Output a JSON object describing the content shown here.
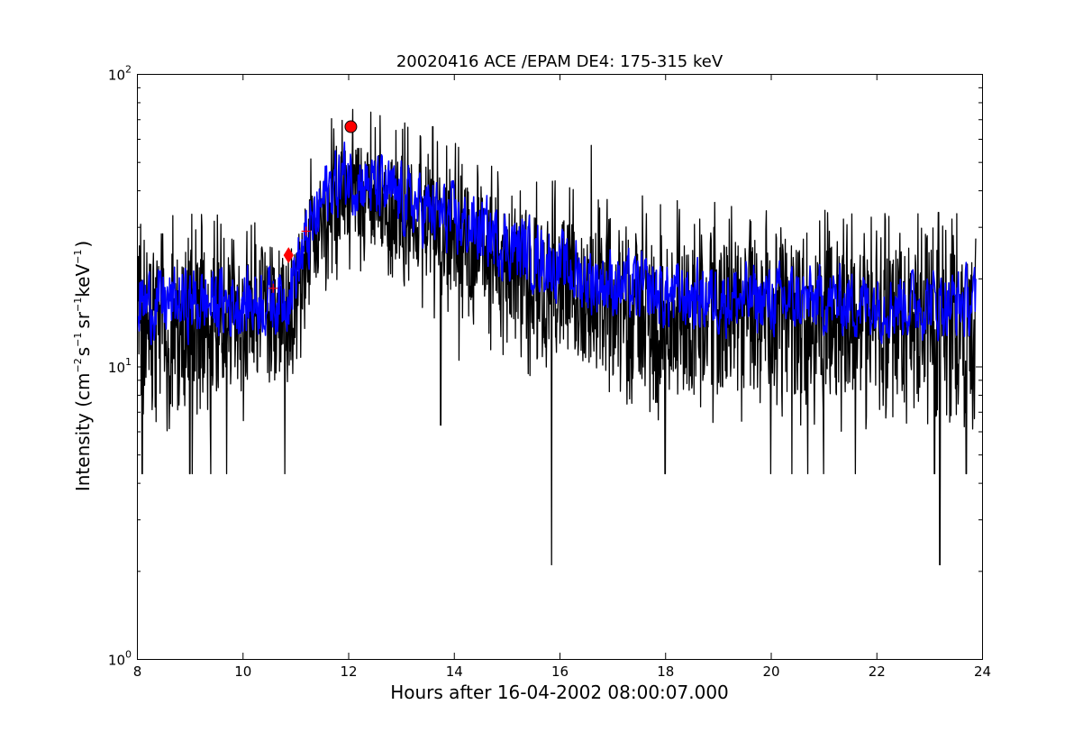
{
  "chart_data": {
    "type": "line",
    "title": "20020416 ACE /EPAM DE4: 175-315 keV",
    "xlabel": "Hours after 16-04-2002 08:00:07.000",
    "ylabel": {
      "prefix": "Intensity (cm",
      "exp1": "−2",
      "s": "s",
      "exp2": "−1",
      "sr": "sr",
      "exp3": "−1",
      "kev": "keV",
      "exp4": "−1",
      "suffix": ")"
    },
    "xlim": [
      8,
      24
    ],
    "ylim": [
      1,
      100
    ],
    "yscale": "log",
    "grid": false,
    "x_ticks": [
      8,
      10,
      12,
      14,
      16,
      18,
      20,
      22,
      24
    ],
    "y_ticks": [
      {
        "value": 1,
        "base": "10",
        "exp": "0"
      },
      {
        "value": 10,
        "base": "10",
        "exp": "1"
      },
      {
        "value": 100,
        "base": "10",
        "exp": "2"
      }
    ],
    "series": [
      {
        "color": "#000000",
        "style": "raw intensity, noisy",
        "x_start": 8.02,
        "x_end": 23.88,
        "envelope": [
          {
            "x": 8.0,
            "low": 8,
            "high": 25
          },
          {
            "x": 9.0,
            "low": 8,
            "high": 25
          },
          {
            "x": 10.0,
            "low": 8,
            "high": 25
          },
          {
            "x": 10.8,
            "low": 9,
            "high": 26
          },
          {
            "x": 11.2,
            "low": 15,
            "high": 35
          },
          {
            "x": 11.6,
            "low": 25,
            "high": 52
          },
          {
            "x": 12.0,
            "low": 28,
            "high": 58
          },
          {
            "x": 12.6,
            "low": 25,
            "high": 55
          },
          {
            "x": 13.5,
            "low": 20,
            "high": 48
          },
          {
            "x": 14.5,
            "low": 16,
            "high": 40
          },
          {
            "x": 15.5,
            "low": 12,
            "high": 34
          },
          {
            "x": 16.5,
            "low": 10,
            "high": 30
          },
          {
            "x": 18.0,
            "low": 8,
            "high": 28
          },
          {
            "x": 20.0,
            "low": 8,
            "high": 26
          },
          {
            "x": 22.0,
            "low": 8,
            "high": 25
          },
          {
            "x": 24.0,
            "low": 8,
            "high": 25
          }
        ],
        "spikes": [
          {
            "x": 8.1,
            "y": 4.3
          },
          {
            "x": 9.0,
            "y": 4.3
          },
          {
            "x": 9.05,
            "y": 4.3
          },
          {
            "x": 9.4,
            "y": 4.3
          },
          {
            "x": 9.7,
            "y": 4.3
          },
          {
            "x": 10.8,
            "y": 4.3
          },
          {
            "x": 12.6,
            "y": 72
          },
          {
            "x": 13.6,
            "y": 66
          },
          {
            "x": 13.75,
            "y": 6.3
          },
          {
            "x": 14.1,
            "y": 10.5
          },
          {
            "x": 15.85,
            "y": 2.1
          },
          {
            "x": 16.6,
            "y": 57
          },
          {
            "x": 18.0,
            "y": 4.3
          },
          {
            "x": 20.0,
            "y": 4.3
          },
          {
            "x": 20.4,
            "y": 4.3
          },
          {
            "x": 20.7,
            "y": 4.3
          },
          {
            "x": 21.0,
            "y": 4.3
          },
          {
            "x": 21.6,
            "y": 4.3
          },
          {
            "x": 23.1,
            "y": 4.3
          },
          {
            "x": 23.2,
            "y": 2.1
          },
          {
            "x": 23.7,
            "y": 4.3
          }
        ]
      },
      {
        "color": "#0000ff",
        "style": "smoothed intensity",
        "x_start": 8.02,
        "x_end": 23.88,
        "profile": [
          {
            "x": 8.0,
            "y": 16.5
          },
          {
            "x": 9.0,
            "y": 16.5
          },
          {
            "x": 10.0,
            "y": 16.5
          },
          {
            "x": 10.8,
            "y": 17.0
          },
          {
            "x": 11.2,
            "y": 26
          },
          {
            "x": 11.6,
            "y": 40
          },
          {
            "x": 12.0,
            "y": 45
          },
          {
            "x": 12.6,
            "y": 40
          },
          {
            "x": 13.5,
            "y": 34
          },
          {
            "x": 14.5,
            "y": 29
          },
          {
            "x": 15.5,
            "y": 24
          },
          {
            "x": 16.5,
            "y": 20
          },
          {
            "x": 18.0,
            "y": 17.5
          },
          {
            "x": 20.0,
            "y": 16.8
          },
          {
            "x": 22.0,
            "y": 16.5
          },
          {
            "x": 24.0,
            "y": 16.5
          }
        ],
        "noise_factor": 1.45
      }
    ],
    "markers": [
      {
        "shape": "circle",
        "color": "#ff0000",
        "x": 12.05,
        "y": 66
      },
      {
        "shape": "diamond",
        "color": "#ff0000",
        "x": 10.87,
        "y": 24
      },
      {
        "shape": "plus",
        "color": "#ff0000",
        "x": 10.58,
        "y": 18.5
      },
      {
        "shape": "plus",
        "color": "#ff0000",
        "x": 11.2,
        "y": 29
      }
    ]
  }
}
